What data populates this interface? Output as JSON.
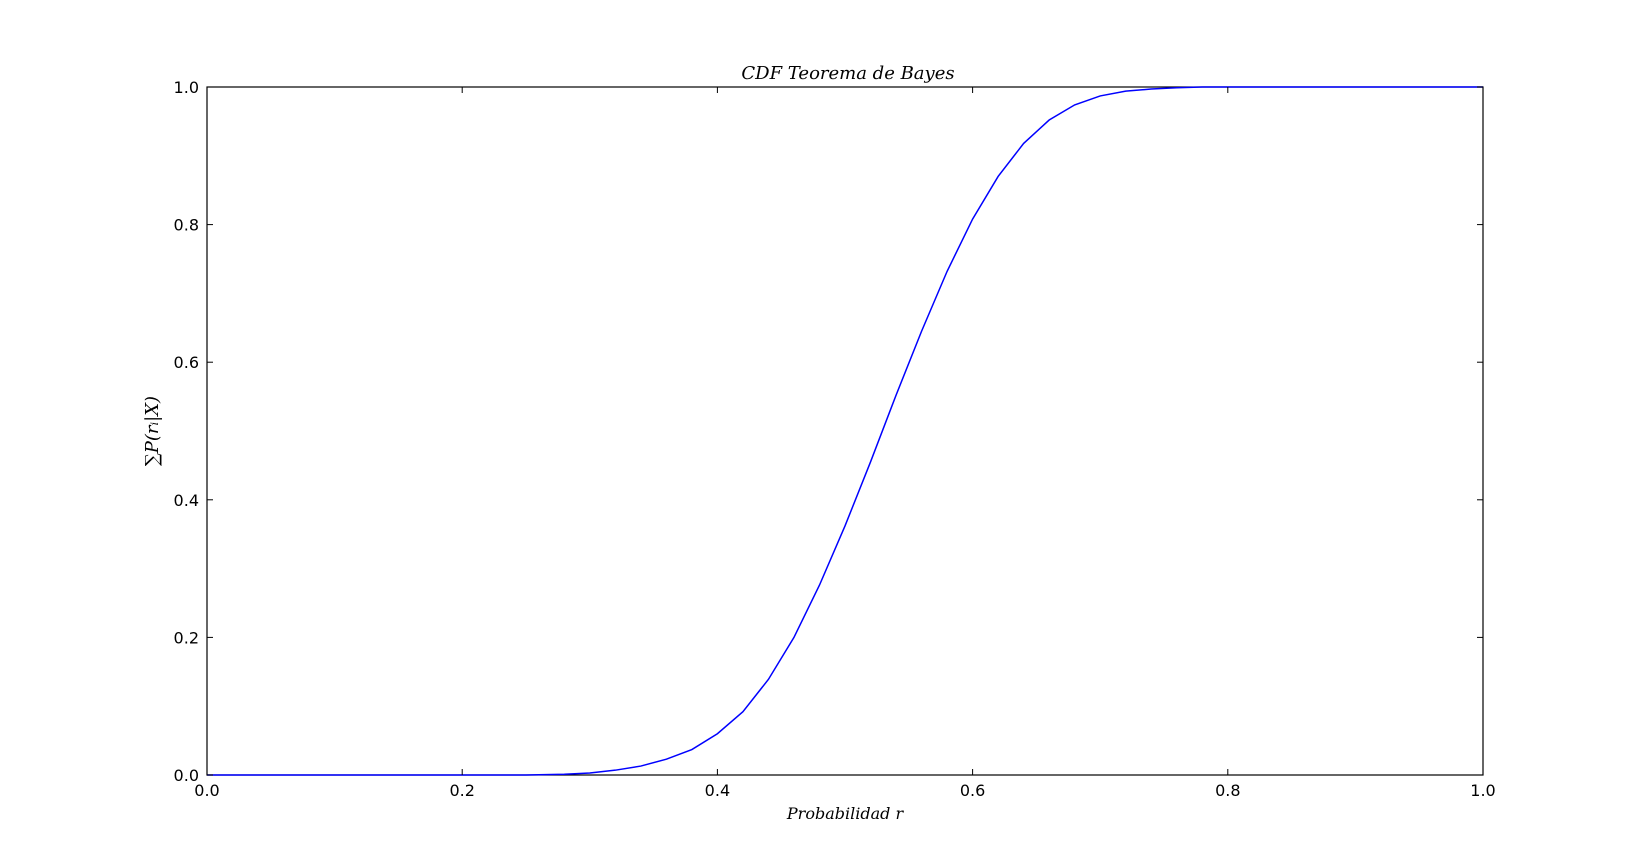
{
  "chart_data": {
    "type": "line",
    "title": "CDF Teorema de Bayes",
    "xlabel": "Probabilidad r",
    "ylabel": "∑P(rᵢ|X)",
    "xlim": [
      0.0,
      1.0
    ],
    "ylim": [
      0.0,
      1.0
    ],
    "x_ticks": [
      "0.0",
      "0.2",
      "0.4",
      "0.6",
      "0.8",
      "1.0"
    ],
    "y_ticks": [
      "0.0",
      "0.2",
      "0.4",
      "0.6",
      "0.8",
      "1.0"
    ],
    "grid": false,
    "legend": "none",
    "line_color": "#0000ff",
    "series": [
      {
        "x": [
          0.0,
          0.05,
          0.1,
          0.15,
          0.2,
          0.25,
          0.28,
          0.3,
          0.32,
          0.34,
          0.36,
          0.38,
          0.4,
          0.42,
          0.44,
          0.46,
          0.48,
          0.5,
          0.52,
          0.54,
          0.56,
          0.58,
          0.6,
          0.62,
          0.64,
          0.66,
          0.68,
          0.7,
          0.72,
          0.74,
          0.76,
          0.78,
          0.8,
          0.85,
          0.9,
          0.95,
          1.0
        ],
        "y": [
          0.0,
          0.0,
          0.0,
          0.0,
          0.0,
          0.0,
          0.001,
          0.003,
          0.007,
          0.013,
          0.023,
          0.037,
          0.06,
          0.092,
          0.139,
          0.2,
          0.276,
          0.362,
          0.455,
          0.552,
          0.645,
          0.732,
          0.808,
          0.87,
          0.918,
          0.952,
          0.974,
          0.987,
          0.994,
          0.997,
          0.999,
          1.0,
          1.0,
          1.0,
          1.0,
          1.0,
          1.0
        ]
      }
    ]
  }
}
